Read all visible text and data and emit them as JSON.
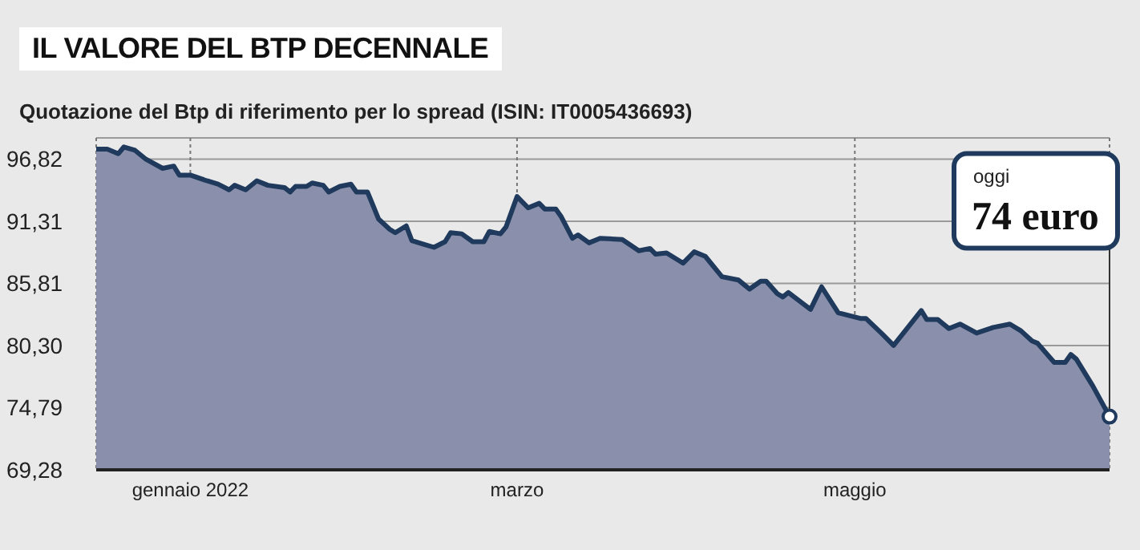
{
  "chart_data": {
    "type": "area",
    "title": "IL VALORE DEL BTP DECENNALE",
    "subtitle": "Quotazione del Btp di riferimento per lo spread (ISIN: IT0005436693)",
    "x": [
      "2021-12-15",
      "2021-12-17",
      "2021-12-19",
      "2021-12-20",
      "2021-12-22",
      "2021-12-24",
      "2021-12-27",
      "2021-12-29",
      "2021-12-30",
      "2022-01-01",
      "2022-01-04",
      "2022-01-06",
      "2022-01-08",
      "2022-01-09",
      "2022-01-11",
      "2022-01-13",
      "2022-01-15",
      "2022-01-18",
      "2022-01-19",
      "2022-01-20",
      "2022-01-22",
      "2022-01-23",
      "2022-01-25",
      "2022-01-26",
      "2022-01-28",
      "2022-01-30",
      "2022-01-31",
      "2022-02-02",
      "2022-02-03",
      "2022-02-04",
      "2022-02-06",
      "2022-02-07",
      "2022-02-09",
      "2022-02-10",
      "2022-02-12",
      "2022-02-14",
      "2022-02-16",
      "2022-02-17",
      "2022-02-19",
      "2022-02-21",
      "2022-02-23",
      "2022-02-24",
      "2022-02-26",
      "2022-02-27",
      "2022-03-01",
      "2022-03-03",
      "2022-03-05",
      "2022-03-06",
      "2022-03-08",
      "2022-03-09",
      "2022-03-11",
      "2022-03-12",
      "2022-03-14",
      "2022-03-16",
      "2022-03-20",
      "2022-03-23",
      "2022-03-25",
      "2022-03-26",
      "2022-03-28",
      "2022-03-31",
      "2022-04-02",
      "2022-04-04",
      "2022-04-07",
      "2022-04-10",
      "2022-04-12",
      "2022-04-14",
      "2022-04-15",
      "2022-04-17",
      "2022-04-18",
      "2022-04-19",
      "2022-04-23",
      "2022-04-25",
      "2022-04-28",
      "2022-05-02",
      "2022-05-03",
      "2022-05-06",
      "2022-05-08",
      "2022-05-13",
      "2022-05-14",
      "2022-05-16",
      "2022-05-18",
      "2022-05-20",
      "2022-05-23",
      "2022-05-26",
      "2022-05-29",
      "2022-05-31",
      "2022-06-02",
      "2022-06-03",
      "2022-06-06",
      "2022-06-08",
      "2022-06-09",
      "2022-06-10",
      "2022-06-12",
      "2022-06-13",
      "2022-06-15",
      "2022-06-16"
    ],
    "series": [
      {
        "color": "#1f3a5c",
        "values": [
          97.7,
          97.7,
          97.3,
          97.9,
          97.6,
          96.8,
          96.0,
          96.2,
          95.4,
          95.4,
          94.9,
          94.6,
          94.1,
          94.5,
          94.1,
          94.9,
          94.5,
          94.3,
          93.9,
          94.4,
          94.4,
          94.7,
          94.5,
          93.9,
          94.4,
          94.6,
          93.9,
          93.9,
          92.7,
          91.5,
          90.6,
          90.3,
          90.9,
          89.6,
          89.3,
          89.0,
          89.5,
          90.3,
          90.2,
          89.5,
          89.5,
          90.4,
          90.2,
          90.8,
          93.5,
          92.5,
          92.9,
          92.4,
          92.4,
          91.7,
          89.8,
          90.1,
          89.4,
          89.8,
          89.7,
          88.7,
          88.9,
          88.4,
          88.5,
          87.6,
          88.6,
          88.2,
          86.4,
          86.1,
          85.3,
          86.0,
          86.0,
          84.9,
          84.6,
          85.0,
          83.5,
          85.5,
          83.2,
          82.7,
          82.7,
          81.3,
          80.3,
          83.4,
          82.6,
          82.6,
          81.8,
          82.2,
          81.4,
          81.9,
          82.2,
          81.6,
          80.7,
          80.5,
          78.8,
          78.8,
          79.5,
          79.1,
          77.5,
          76.7,
          74.9,
          74.0
        ]
      }
    ],
    "xlim": [
      "2021-12-15",
      "2022-06-16"
    ],
    "xticks": [
      {
        "value": "2022-01-01",
        "label": "gennaio 2022"
      },
      {
        "value": "2022-03-01",
        "label": "marzo"
      },
      {
        "value": "2022-05-01",
        "label": "maggio"
      }
    ],
    "ylim": [
      69.28,
      98.7
    ],
    "yticks": [
      {
        "value": 69.28,
        "label": "69,28"
      },
      {
        "value": 74.79,
        "label": "74,79"
      },
      {
        "value": 80.3,
        "label": "80,30"
      },
      {
        "value": 85.81,
        "label": "85,81"
      },
      {
        "value": 91.31,
        "label": "91,31"
      },
      {
        "value": 96.82,
        "label": "96,82"
      }
    ],
    "annotations": [
      "oggi",
      "74 euro"
    ],
    "grid": true,
    "marker": "none",
    "line_style": "solid"
  }
}
